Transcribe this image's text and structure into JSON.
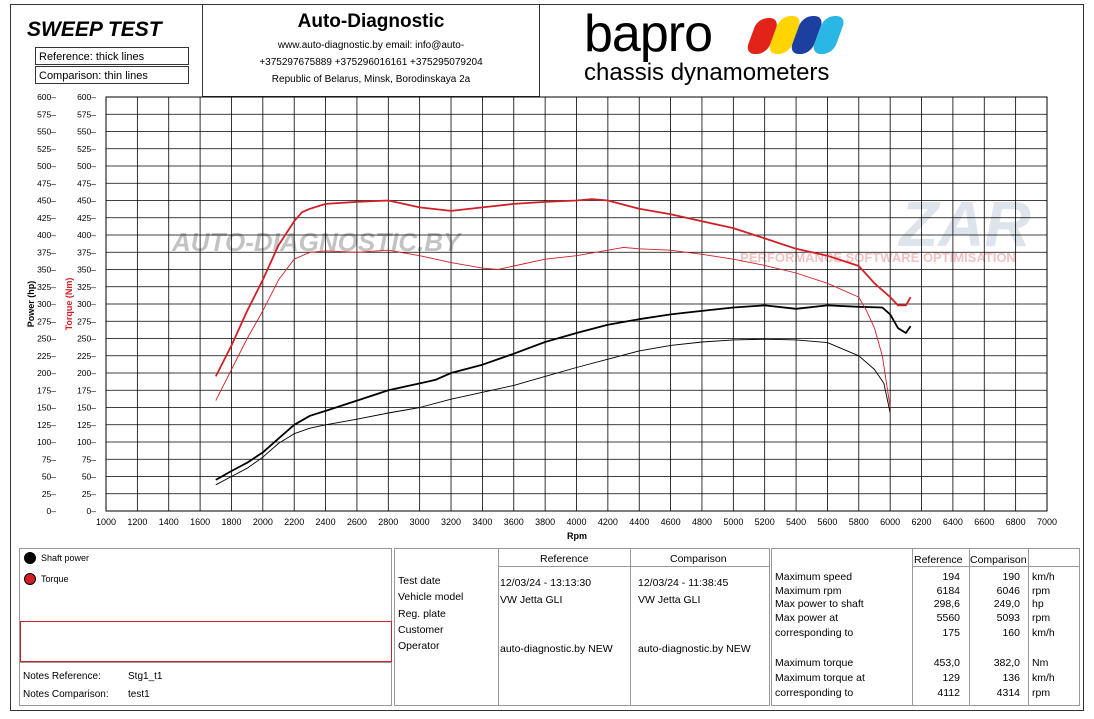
{
  "header": {
    "title": "SWEEP TEST",
    "reference_label": "Reference: thick lines",
    "comparison_label": "Comparison: thin lines",
    "company": "Auto-Diagnostic",
    "contact_line1": "www.auto-diagnostic.by     email: info@auto-",
    "contact_line2": "+375297675889  +375296016161  +375295079204",
    "contact_line3": "Republic of Belarus, Minsk, Borodinskaya 2a",
    "brand_name": "bapro",
    "brand_sub": "chassis dynamometers",
    "watermark_left": "AUTO-DIAGNOSTIC.BY",
    "watermark_right": "PERFORMANCE SOFTWARE OPTIMISATION",
    "watermark_logo": "ZAR"
  },
  "colors": {
    "power": "#000000",
    "torque": "#d21f26",
    "grid": "#000000"
  },
  "chart_data": {
    "type": "line",
    "xlabel": "Rpm",
    "ylabel_left": "Power (hp)",
    "ylabel_right": "Torque (Nm)",
    "xlim": [
      1000,
      7000
    ],
    "ylim": [
      0,
      600
    ],
    "x_ticks": [
      1000,
      1200,
      1400,
      1600,
      1800,
      2000,
      2200,
      2400,
      2600,
      2800,
      3000,
      3200,
      3400,
      3600,
      3800,
      4000,
      4200,
      4400,
      4600,
      4800,
      5000,
      5200,
      5400,
      5600,
      5800,
      6000,
      6200,
      6400,
      6600,
      6800,
      7000
    ],
    "y_ticks": [
      0,
      25,
      50,
      75,
      100,
      125,
      150,
      175,
      200,
      225,
      250,
      275,
      300,
      325,
      350,
      375,
      400,
      425,
      450,
      475,
      500,
      525,
      550,
      575,
      600
    ],
    "series": [
      {
        "name": "Shaft power",
        "run": "Reference",
        "x": [
          1700,
          1800,
          1900,
          2000,
          2100,
          2200,
          2300,
          2400,
          2600,
          2800,
          3000,
          3100,
          3200,
          3400,
          3600,
          3800,
          4000,
          4200,
          4400,
          4600,
          4800,
          5000,
          5200,
          5400,
          5600,
          5800,
          5950,
          6000,
          6050,
          6100,
          6130
        ],
        "y": [
          45,
          58,
          70,
          85,
          105,
          125,
          138,
          145,
          160,
          175,
          185,
          190,
          200,
          212,
          228,
          245,
          258,
          270,
          278,
          285,
          290,
          295,
          298,
          293,
          298,
          296,
          295,
          285,
          265,
          258,
          268
        ]
      },
      {
        "name": "Torque",
        "run": "Reference",
        "x": [
          1700,
          1800,
          1900,
          2000,
          2100,
          2200,
          2250,
          2300,
          2400,
          2600,
          2800,
          3000,
          3200,
          3400,
          3600,
          3800,
          4000,
          4100,
          4200,
          4400,
          4600,
          4800,
          5000,
          5200,
          5400,
          5600,
          5800,
          5900,
          6000,
          6050,
          6100,
          6130
        ],
        "y": [
          195,
          240,
          290,
          335,
          385,
          420,
          433,
          438,
          445,
          448,
          450,
          440,
          435,
          440,
          445,
          448,
          450,
          452,
          450,
          438,
          430,
          420,
          410,
          395,
          380,
          370,
          355,
          330,
          310,
          298,
          298,
          310
        ]
      },
      {
        "name": "Shaft power",
        "run": "Comparison",
        "x": [
          1700,
          1800,
          1900,
          2000,
          2100,
          2200,
          2300,
          2400,
          2600,
          2800,
          3000,
          3200,
          3400,
          3600,
          3800,
          4000,
          4200,
          4400,
          4600,
          4800,
          5000,
          5200,
          5400,
          5600,
          5800,
          5900,
          5960,
          6000
        ],
        "y": [
          38,
          50,
          62,
          78,
          98,
          112,
          120,
          125,
          133,
          142,
          150,
          162,
          172,
          182,
          195,
          208,
          220,
          232,
          240,
          245,
          248,
          249,
          248,
          244,
          225,
          205,
          185,
          142
        ]
      },
      {
        "name": "Torque",
        "run": "Comparison",
        "x": [
          1700,
          1800,
          1900,
          2000,
          2100,
          2200,
          2300,
          2400,
          2600,
          2800,
          3000,
          3200,
          3400,
          3500,
          3600,
          3800,
          4000,
          4200,
          4300,
          4400,
          4600,
          4800,
          5000,
          5200,
          5400,
          5600,
          5800,
          5850,
          5900,
          5950,
          6000
        ],
        "y": [
          160,
          205,
          250,
          290,
          335,
          365,
          375,
          377,
          375,
          378,
          370,
          360,
          352,
          350,
          355,
          365,
          370,
          378,
          382,
          380,
          378,
          372,
          365,
          356,
          345,
          330,
          310,
          290,
          265,
          225,
          150
        ]
      }
    ]
  },
  "legend": {
    "power": "Shaft power",
    "torque": "Torque"
  },
  "notes": {
    "reference_label": "Notes Reference:",
    "reference_value": "Stg1_t1",
    "comparison_label": "Notes Comparison:",
    "comparison_value": "test1"
  },
  "info": {
    "col_reference": "Reference",
    "col_comparison": "Comparison",
    "labels": [
      "Test date",
      "Vehicle model",
      "Reg. plate",
      "Customer",
      "Operator"
    ],
    "reference": {
      "date": "12/03/24 - 13:13:30",
      "model": "VW Jetta GLI",
      "operator": "auto-diagnostic.by NEW"
    },
    "comparison": {
      "date": "12/03/24 - 11:38:45",
      "model": "VW Jetta GLI",
      "operator": "auto-diagnostic.by NEW"
    }
  },
  "stats": {
    "col_reference": "Reference",
    "col_comparison": "Comparison",
    "rows": [
      {
        "label": "Maximum speed",
        "ref": "194",
        "cmp": "190",
        "unit": "km/h"
      },
      {
        "label": "Maximum rpm",
        "ref": "6184",
        "cmp": "6046",
        "unit": "rpm"
      },
      {
        "label": "Max power to shaft",
        "ref": "298,6",
        "cmp": "249,0",
        "unit": "hp"
      },
      {
        "label": "Max power at",
        "ref": "5560",
        "cmp": "5093",
        "unit": "rpm"
      },
      {
        "label": "corresponding to",
        "ref": "175",
        "cmp": "160",
        "unit": "km/h"
      },
      {
        "label": "Maximum torque",
        "ref": "453,0",
        "cmp": "382,0",
        "unit": "Nm"
      },
      {
        "label": "Maximum torque at",
        "ref": "129",
        "cmp": "136",
        "unit": "km/h"
      },
      {
        "label": "corresponding to",
        "ref": "4112",
        "cmp": "4314",
        "unit": "rpm"
      }
    ]
  }
}
